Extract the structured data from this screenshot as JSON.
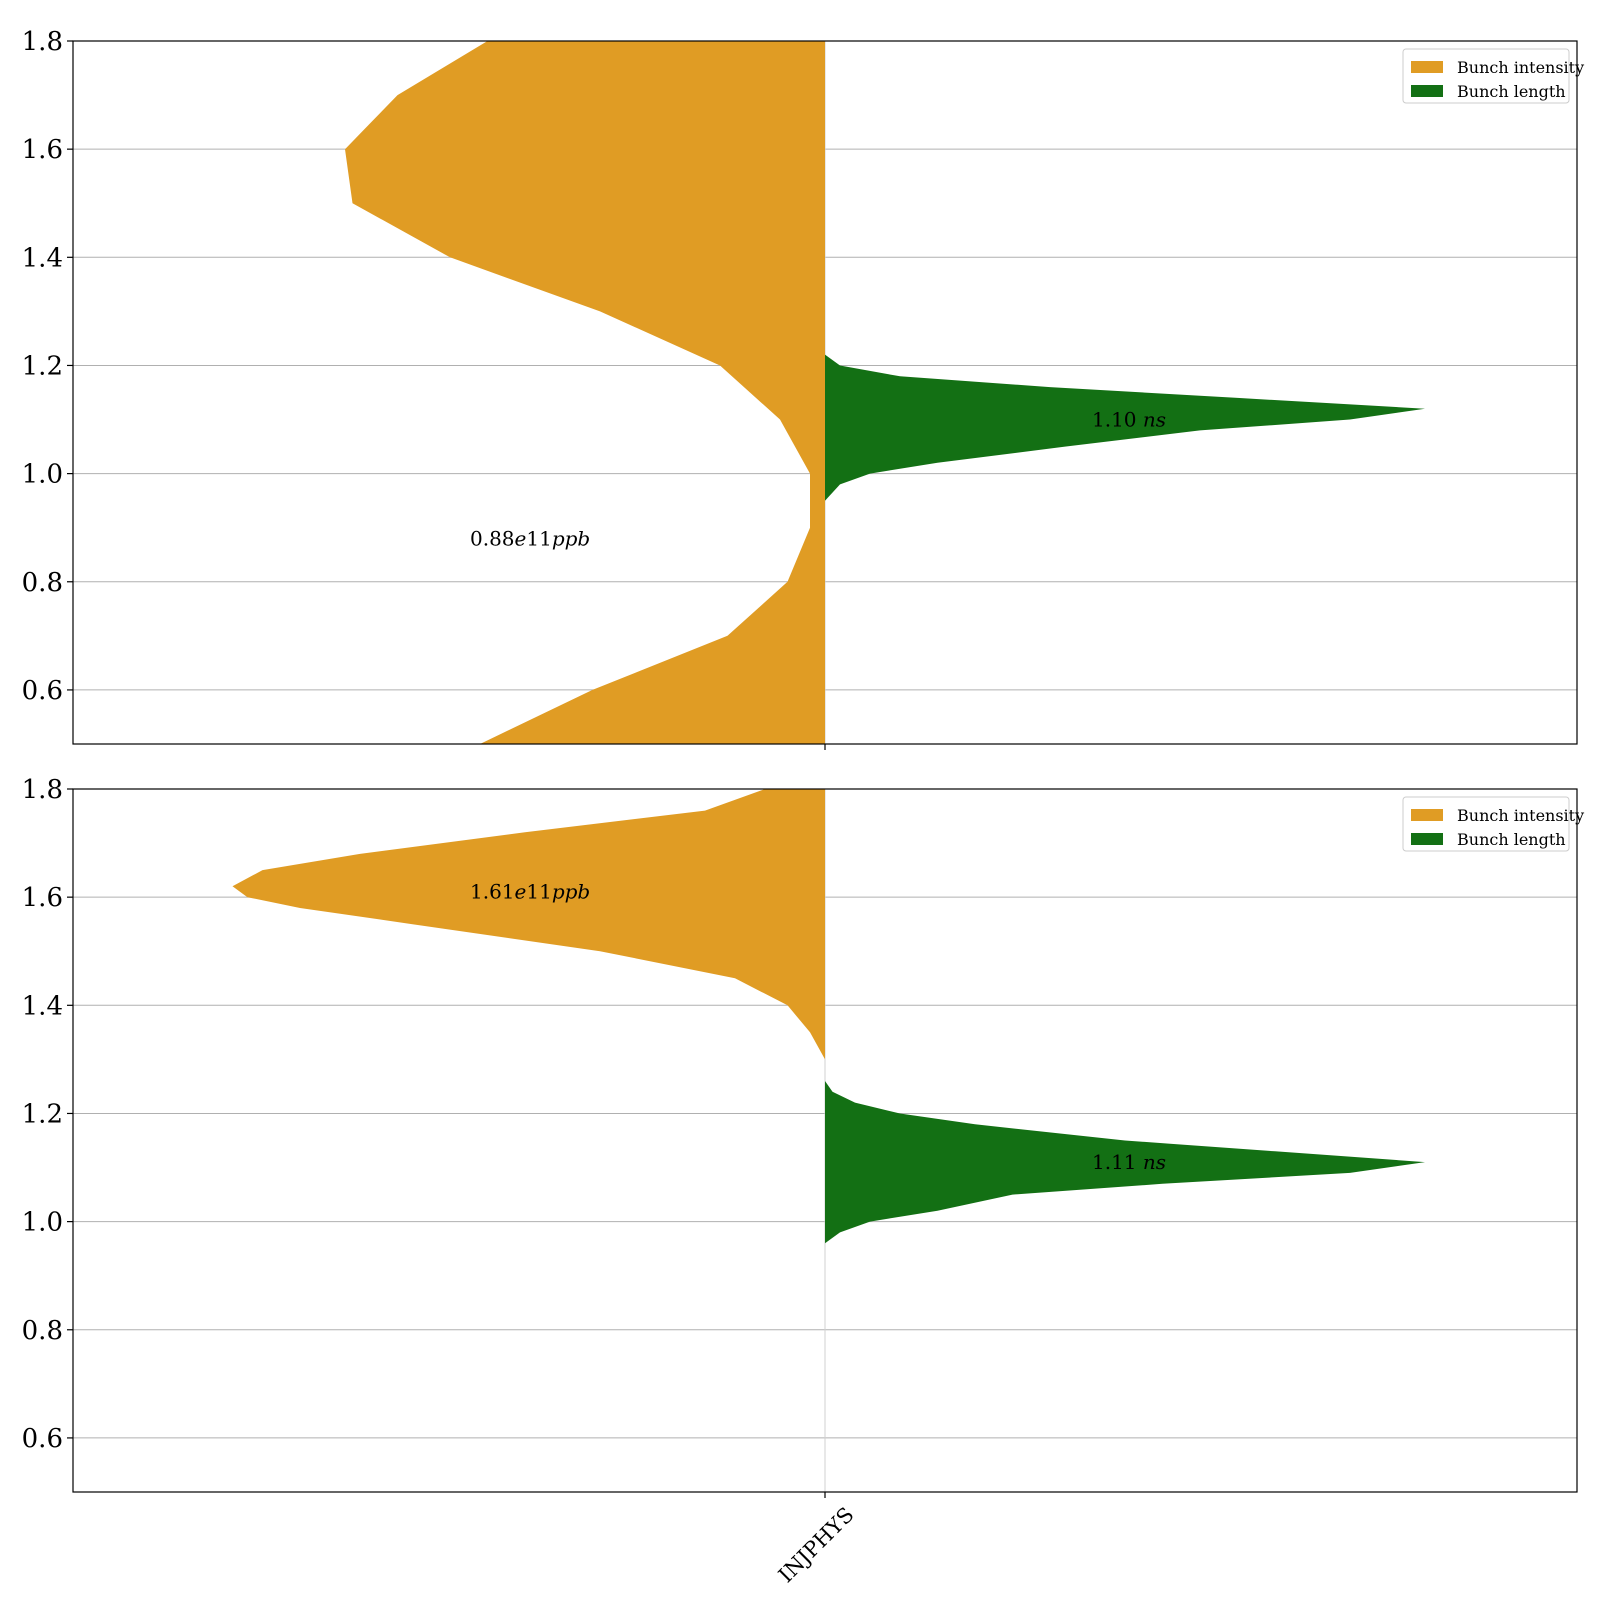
{
  "chart_data": [
    {
      "type": "violin",
      "split": true,
      "categories": [
        "INJPHYS"
      ],
      "ylim": [
        0.5,
        1.8
      ],
      "yticks": [
        0.6,
        0.8,
        1.0,
        1.2,
        1.4,
        1.6,
        1.8
      ],
      "ytick_labels": [
        "0.6",
        "0.8",
        "1.0",
        "1.2",
        "1.4",
        "1.6",
        "1.8"
      ],
      "grid": "y",
      "legend": {
        "placement": "top-right",
        "entries": [
          {
            "label": "Bunch intensity",
            "color": "#e09c24"
          },
          {
            "label": "Bunch length",
            "color": "#137014"
          }
        ]
      },
      "series": [
        {
          "side": "left",
          "color": "#e09c24",
          "profile_note": "relative density width vs y",
          "y": [
            0.5,
            0.6,
            0.7,
            0.8,
            0.9,
            1.0,
            1.1,
            1.2,
            1.3,
            1.4,
            1.5,
            1.6,
            1.7,
            1.8
          ],
          "width": [
            0.46,
            0.31,
            0.13,
            0.05,
            0.02,
            0.02,
            0.06,
            0.14,
            0.3,
            0.5,
            0.63,
            0.64,
            0.57,
            0.45
          ]
        },
        {
          "side": "right",
          "color": "#137014",
          "y": [
            0.95,
            0.98,
            1.0,
            1.02,
            1.05,
            1.08,
            1.1,
            1.12,
            1.14,
            1.16,
            1.18,
            1.2,
            1.22
          ],
          "width": [
            0.0,
            0.02,
            0.06,
            0.15,
            0.32,
            0.5,
            0.7,
            0.8,
            0.55,
            0.3,
            0.1,
            0.02,
            0.0
          ]
        }
      ],
      "annotations": [
        {
          "text_main": "0.88",
          "text_exp": "e",
          "text_num": "11",
          "text_unit": "ppb",
          "y": 0.88
        },
        {
          "text_main": "1.10 ",
          "text_unit": "ns",
          "y": 1.1
        }
      ]
    },
    {
      "type": "violin",
      "split": true,
      "categories": [
        "INJPHYS"
      ],
      "ylim": [
        0.5,
        1.8
      ],
      "yticks": [
        0.6,
        0.8,
        1.0,
        1.2,
        1.4,
        1.6,
        1.8
      ],
      "ytick_labels": [
        "0.6",
        "0.8",
        "1.0",
        "1.2",
        "1.4",
        "1.6",
        "1.8"
      ],
      "grid": "y",
      "legend": {
        "placement": "top-right",
        "entries": [
          {
            "label": "Bunch intensity",
            "color": "#e09c24"
          },
          {
            "label": "Bunch length",
            "color": "#137014"
          }
        ]
      },
      "series": [
        {
          "side": "left",
          "color": "#e09c24",
          "y": [
            1.26,
            1.3,
            1.35,
            1.4,
            1.45,
            1.5,
            1.55,
            1.58,
            1.6,
            1.62,
            1.65,
            1.68,
            1.72,
            1.76,
            1.8
          ],
          "width": [
            0.0,
            0.0,
            0.02,
            0.05,
            0.12,
            0.3,
            0.55,
            0.7,
            0.77,
            0.79,
            0.75,
            0.62,
            0.4,
            0.16,
            0.08
          ]
        },
        {
          "side": "right",
          "color": "#137014",
          "y": [
            0.96,
            0.98,
            1.0,
            1.02,
            1.05,
            1.07,
            1.09,
            1.11,
            1.13,
            1.15,
            1.18,
            1.2,
            1.22,
            1.24,
            1.26
          ],
          "width": [
            0.0,
            0.02,
            0.06,
            0.15,
            0.25,
            0.45,
            0.7,
            0.8,
            0.6,
            0.4,
            0.2,
            0.1,
            0.04,
            0.01,
            0.0
          ]
        }
      ],
      "annotations": [
        {
          "text_main": "1.61",
          "text_exp": "e",
          "text_num": "11",
          "text_unit": "ppb",
          "y": 1.61
        },
        {
          "text_main": "1.11 ",
          "text_unit": "ns",
          "y": 1.11
        }
      ]
    }
  ]
}
